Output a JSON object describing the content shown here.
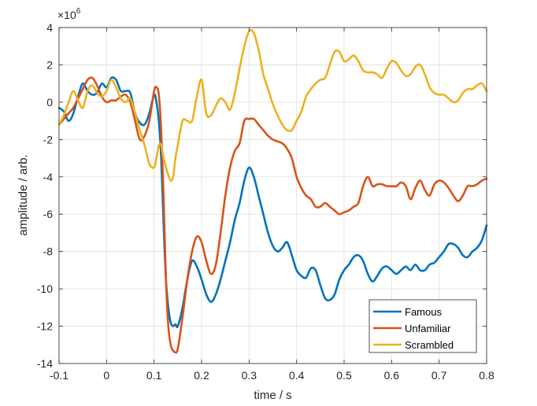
{
  "chart_data": {
    "type": "line",
    "title": "",
    "xlabel": "time / s",
    "ylabel": "amplitude / arb.",
    "xlim": [
      -0.1,
      0.8
    ],
    "ylim": [
      -14,
      4
    ],
    "xticks": [
      -0.1,
      0,
      0.1,
      0.2,
      0.3,
      0.4,
      0.5,
      0.6,
      0.7,
      0.8
    ],
    "xtick_labels": [
      "-0.1",
      "0",
      "0.1",
      "0.2",
      "0.3",
      "0.4",
      "0.5",
      "0.6",
      "0.7",
      "0.8"
    ],
    "yticks": [
      -14,
      -12,
      -10,
      -8,
      -6,
      -4,
      -2,
      0,
      2,
      4
    ],
    "ytick_labels": [
      "-14",
      "-12",
      "-10",
      "-8",
      "-6",
      "-4",
      "-2",
      "0",
      "2",
      "4"
    ],
    "y_exponent": {
      "base": "×10",
      "power": "6"
    },
    "grid": true,
    "legend_position": "bottom-right",
    "x": [
      -0.1,
      -0.09,
      -0.08,
      -0.07,
      -0.06,
      -0.05,
      -0.04,
      -0.03,
      -0.02,
      -0.01,
      0,
      0.01,
      0.02,
      0.03,
      0.04,
      0.05,
      0.06,
      0.07,
      0.08,
      0.09,
      0.1,
      0.105,
      0.11,
      0.115,
      0.12,
      0.125,
      0.13,
      0.135,
      0.14,
      0.145,
      0.15,
      0.16,
      0.17,
      0.18,
      0.19,
      0.2,
      0.21,
      0.22,
      0.23,
      0.24,
      0.25,
      0.26,
      0.27,
      0.28,
      0.29,
      0.3,
      0.31,
      0.32,
      0.33,
      0.34,
      0.35,
      0.36,
      0.37,
      0.38,
      0.39,
      0.4,
      0.41,
      0.42,
      0.43,
      0.44,
      0.45,
      0.46,
      0.47,
      0.48,
      0.49,
      0.5,
      0.51,
      0.52,
      0.53,
      0.54,
      0.55,
      0.56,
      0.57,
      0.58,
      0.59,
      0.6,
      0.61,
      0.62,
      0.63,
      0.64,
      0.65,
      0.66,
      0.67,
      0.68,
      0.69,
      0.7,
      0.71,
      0.72,
      0.73,
      0.74,
      0.75,
      0.76,
      0.77,
      0.78,
      0.79,
      0.8
    ],
    "series": [
      {
        "name": "Famous",
        "color": "#0072BD",
        "values": [
          -0.3,
          -0.5,
          -1.0,
          -0.6,
          0.3,
          1.0,
          0.6,
          0.4,
          0.5,
          1.0,
          0.8,
          1.3,
          1.2,
          0.6,
          0.6,
          0.5,
          -0.6,
          -1.1,
          -1.2,
          -0.6,
          0.4,
          0.0,
          -1.0,
          -3.0,
          -6.5,
          -9.5,
          -11.0,
          -11.8,
          -12.0,
          -11.9,
          -12.0,
          -11.0,
          -9.5,
          -8.5,
          -8.8,
          -9.5,
          -10.3,
          -10.7,
          -10.3,
          -9.5,
          -8.5,
          -7.5,
          -6.3,
          -5.4,
          -4.2,
          -3.5,
          -4.0,
          -5.0,
          -6.0,
          -7.0,
          -7.7,
          -8.0,
          -7.8,
          -7.5,
          -8.2,
          -9.0,
          -9.3,
          -9.4,
          -8.9,
          -9.0,
          -9.8,
          -10.5,
          -10.6,
          -10.3,
          -9.5,
          -9.0,
          -8.7,
          -8.3,
          -8.2,
          -8.5,
          -9.2,
          -9.6,
          -9.3,
          -8.9,
          -8.8,
          -9.0,
          -9.2,
          -9.0,
          -8.8,
          -9.0,
          -8.7,
          -9.0,
          -9.0,
          -8.7,
          -8.6,
          -8.3,
          -8.0,
          -7.6,
          -7.6,
          -7.8,
          -8.2,
          -8.3,
          -8.0,
          -7.8,
          -7.4,
          -6.6
        ]
      },
      {
        "name": "Unfamiliar",
        "color": "#D95319",
        "values": [
          -1.2,
          -0.9,
          -0.6,
          -0.3,
          0.2,
          0.7,
          1.2,
          1.3,
          0.9,
          0.3,
          0.0,
          0.1,
          0.1,
          0.3,
          0.4,
          0.0,
          -1.0,
          -2.0,
          -1.8,
          -1.0,
          0.6,
          0.8,
          0.4,
          -1.5,
          -5.0,
          -9.5,
          -12.0,
          -13.0,
          -13.3,
          -13.4,
          -13.2,
          -11.5,
          -9.5,
          -8.0,
          -7.2,
          -7.5,
          -8.5,
          -9.2,
          -8.7,
          -7.0,
          -5.0,
          -3.5,
          -2.6,
          -2.2,
          -1.0,
          -0.9,
          -0.9,
          -1.2,
          -1.5,
          -1.8,
          -2.0,
          -2.1,
          -2.2,
          -2.5,
          -3.0,
          -4.0,
          -4.6,
          -5.0,
          -5.2,
          -5.6,
          -5.6,
          -5.4,
          -5.6,
          -5.8,
          -6.0,
          -5.9,
          -5.8,
          -5.6,
          -5.4,
          -4.5,
          -4.0,
          -4.5,
          -4.4,
          -4.4,
          -4.5,
          -4.5,
          -4.5,
          -4.3,
          -4.5,
          -5.2,
          -4.6,
          -4.2,
          -4.7,
          -5.0,
          -4.4,
          -4.2,
          -4.3,
          -4.6,
          -5.0,
          -5.3,
          -5.0,
          -4.5,
          -4.5,
          -4.4,
          -4.2,
          -4.1
        ]
      },
      {
        "name": "Scrambled",
        "color": "#EDB120",
        "values": [
          -1.2,
          -0.7,
          0.0,
          0.6,
          0.1,
          -0.3,
          0.6,
          0.9,
          0.5,
          0.3,
          0.6,
          1.2,
          0.8,
          0.2,
          0.0,
          0.2,
          -0.6,
          -1.5,
          -2.3,
          -3.3,
          -3.5,
          -3.0,
          -2.3,
          -2.3,
          -3.0,
          -3.5,
          -3.9,
          -4.2,
          -4.0,
          -3.0,
          -2.3,
          -1.0,
          -1.0,
          -1.0,
          0.3,
          1.2,
          -0.6,
          -0.7,
          -0.2,
          0.2,
          0.0,
          -0.4,
          0.5,
          1.8,
          3.0,
          3.8,
          3.7,
          2.8,
          1.5,
          0.7,
          -0.1,
          -0.7,
          -1.2,
          -1.5,
          -1.5,
          -1.0,
          -0.5,
          0.3,
          0.7,
          1.0,
          1.2,
          1.3,
          2.0,
          2.7,
          2.7,
          2.2,
          2.3,
          2.5,
          2.2,
          1.7,
          1.6,
          1.6,
          1.5,
          1.3,
          1.8,
          2.2,
          2.1,
          1.7,
          1.4,
          1.5,
          1.9,
          2.0,
          1.5,
          0.8,
          0.5,
          0.4,
          0.4,
          0.2,
          0.0,
          0.1,
          0.5,
          0.7,
          0.7,
          0.9,
          1.0,
          0.6
        ]
      }
    ]
  }
}
